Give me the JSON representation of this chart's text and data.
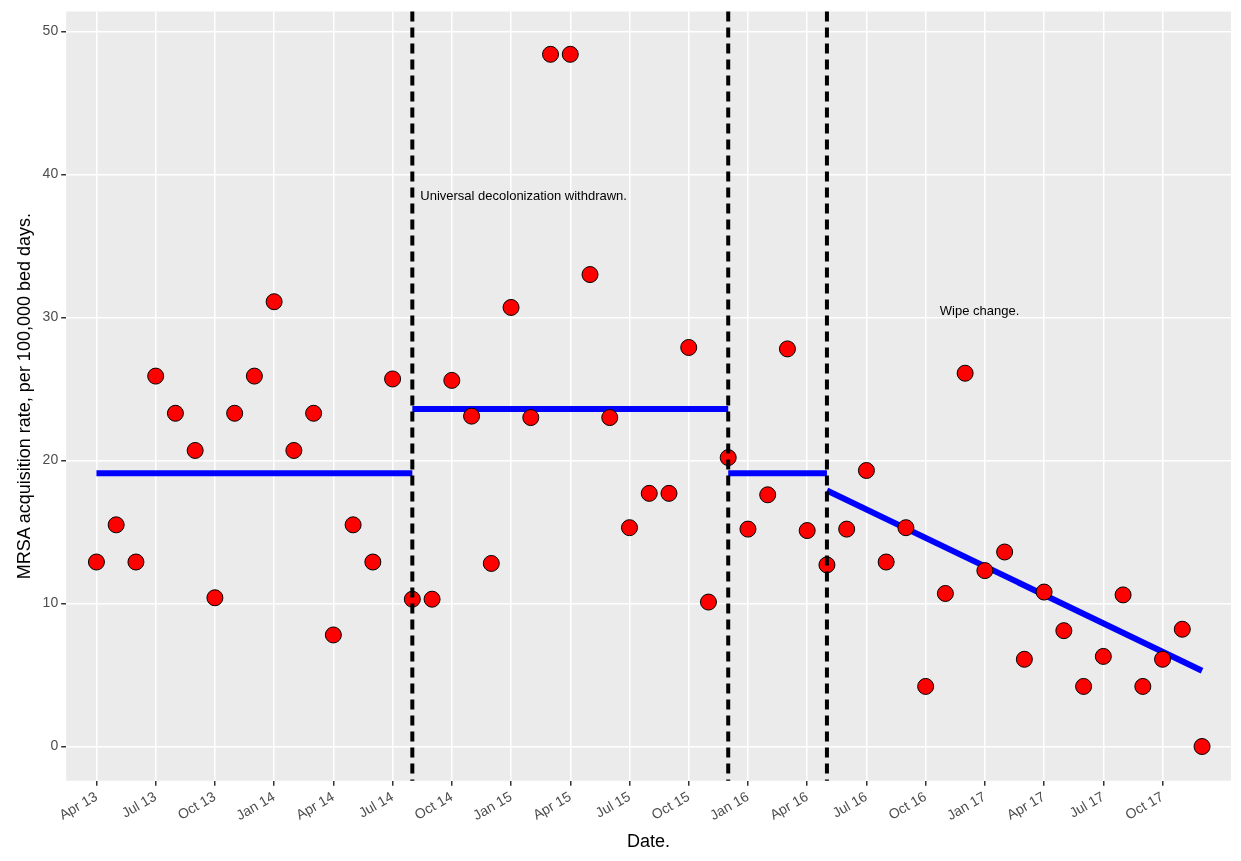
{
  "chart_data": {
    "type": "scatter",
    "xlabel": "Date.",
    "ylabel": "MRSA acquisition rate, per 100,000 bed days.",
    "x": [
      "2013-04",
      "2013-05",
      "2013-06",
      "2013-07",
      "2013-08",
      "2013-09",
      "2013-10",
      "2013-11",
      "2013-12",
      "2014-01",
      "2014-02",
      "2014-03",
      "2014-04",
      "2014-05",
      "2014-06",
      "2014-07",
      "2014-08",
      "2014-09",
      "2014-10",
      "2014-11",
      "2014-12",
      "2015-01",
      "2015-02",
      "2015-03",
      "2015-04",
      "2015-05",
      "2015-06",
      "2015-07",
      "2015-08",
      "2015-09",
      "2015-10",
      "2015-11",
      "2015-12",
      "2016-01",
      "2016-02",
      "2016-03",
      "2016-04",
      "2016-05",
      "2016-06",
      "2016-07",
      "2016-08",
      "2016-09",
      "2016-10",
      "2016-11",
      "2016-12",
      "2017-01",
      "2017-02",
      "2017-03",
      "2017-04",
      "2017-05",
      "2017-06",
      "2017-07",
      "2017-08",
      "2017-09",
      "2017-10",
      "2017-11",
      "2017-12"
    ],
    "series": [
      {
        "color": "#ff0000",
        "marker": "circle",
        "values": [
          12.9,
          15.5,
          12.9,
          25.9,
          23.3,
          20.7,
          10.4,
          23.3,
          25.9,
          31.1,
          20.7,
          23.3,
          7.8,
          15.5,
          12.9,
          25.7,
          10.3,
          10.3,
          25.6,
          23.1,
          12.8,
          30.7,
          23.0,
          48.4,
          48.4,
          33.0,
          23.0,
          15.3,
          17.7,
          17.7,
          27.9,
          10.1,
          20.2,
          15.2,
          17.6,
          27.8,
          15.1,
          12.7,
          15.2,
          19.3,
          12.9,
          15.3,
          4.2,
          10.7,
          26.1,
          12.3,
          13.6,
          6.1,
          10.8,
          8.1,
          4.2,
          6.3,
          10.6,
          4.2,
          6.1,
          8.2,
          0
        ]
      },
      {
        "type": "line",
        "color": "#0000ff",
        "x": [
          "2013-04",
          "2014-08"
        ],
        "values": [
          19.1,
          19.1
        ]
      },
      {
        "type": "line",
        "color": "#0000ff",
        "x": [
          "2014-08",
          "2015-12"
        ],
        "values": [
          23.6,
          23.6
        ]
      },
      {
        "type": "line",
        "color": "#0000ff",
        "x": [
          "2015-12",
          "2016-05"
        ],
        "values": [
          19.1,
          19.1
        ]
      },
      {
        "type": "line",
        "color": "#0000ff",
        "x": [
          "2016-05",
          "2017-12"
        ],
        "values": [
          17.9,
          5.3
        ]
      }
    ],
    "xlim": [
      "2013-02-15",
      "2018-01-15"
    ],
    "xticks": [
      {
        "value": "2013-04",
        "label": "Apr 13"
      },
      {
        "value": "2013-07",
        "label": "Jul 13"
      },
      {
        "value": "2013-10",
        "label": "Oct 13"
      },
      {
        "value": "2014-01",
        "label": "Jan 14"
      },
      {
        "value": "2014-04",
        "label": "Apr 14"
      },
      {
        "value": "2014-07",
        "label": "Jul 14"
      },
      {
        "value": "2014-10",
        "label": "Oct 14"
      },
      {
        "value": "2015-01",
        "label": "Jan 15"
      },
      {
        "value": "2015-04",
        "label": "Apr 15"
      },
      {
        "value": "2015-07",
        "label": "Jul 15"
      },
      {
        "value": "2015-10",
        "label": "Oct 15"
      },
      {
        "value": "2016-01",
        "label": "Jan 16"
      },
      {
        "value": "2016-04",
        "label": "Apr 16"
      },
      {
        "value": "2016-07",
        "label": "Jul 16"
      },
      {
        "value": "2016-10",
        "label": "Oct 16"
      },
      {
        "value": "2017-01",
        "label": "Jan 17"
      },
      {
        "value": "2017-04",
        "label": "Apr 17"
      },
      {
        "value": "2017-07",
        "label": "Jul 17"
      },
      {
        "value": "2017-10",
        "label": "Oct 17"
      }
    ],
    "ylim": [
      -2.4,
      51.4
    ],
    "yticks": [
      0,
      10,
      20,
      30,
      40,
      50
    ],
    "grid": true,
    "legend": false,
    "ref_lines": [
      {
        "axis": "x",
        "value": "2014-08",
        "color": "#000000",
        "line_style": "dashed"
      },
      {
        "axis": "x",
        "value": "2015-12",
        "color": "#000000",
        "line_style": "dashed"
      },
      {
        "axis": "x",
        "value": "2016-05",
        "color": "#000000",
        "line_style": "dashed"
      }
    ],
    "annotations": [
      "Universal decolonization withdrawn.",
      "Wipe change."
    ]
  }
}
